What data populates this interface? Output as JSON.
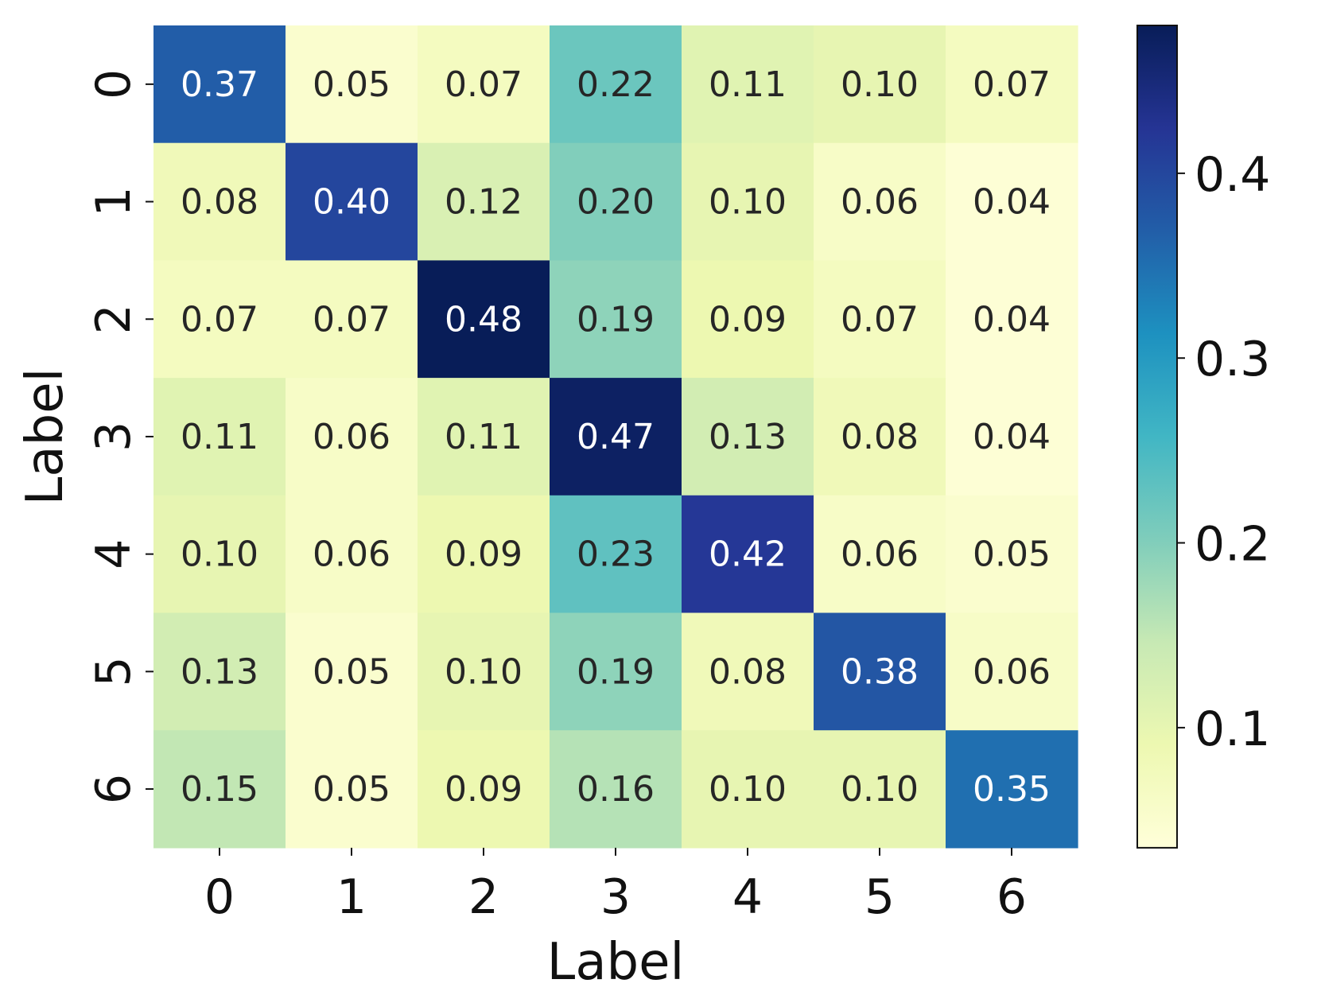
{
  "chart_data": {
    "type": "heatmap",
    "title": "",
    "xlabel": "Label",
    "ylabel": "Label",
    "x_categories": [
      "0",
      "1",
      "2",
      "3",
      "4",
      "5",
      "6"
    ],
    "y_categories": [
      "0",
      "1",
      "2",
      "3",
      "4",
      "5",
      "6"
    ],
    "values": [
      [
        0.37,
        0.05,
        0.07,
        0.22,
        0.11,
        0.1,
        0.07
      ],
      [
        0.08,
        0.4,
        0.12,
        0.2,
        0.1,
        0.06,
        0.04
      ],
      [
        0.07,
        0.07,
        0.48,
        0.19,
        0.09,
        0.07,
        0.04
      ],
      [
        0.11,
        0.06,
        0.11,
        0.47,
        0.13,
        0.08,
        0.04
      ],
      [
        0.1,
        0.06,
        0.09,
        0.23,
        0.42,
        0.06,
        0.05
      ],
      [
        0.13,
        0.05,
        0.1,
        0.19,
        0.08,
        0.38,
        0.06
      ],
      [
        0.15,
        0.05,
        0.09,
        0.16,
        0.1,
        0.1,
        0.35
      ]
    ],
    "value_format": "0.00",
    "annotated": true,
    "colormap": "YlGnBu",
    "colormap_stops": [
      "#ffffd9",
      "#edf8b1",
      "#c7e9b4",
      "#7fcdbb",
      "#41b6c4",
      "#1d91c0",
      "#225ea8",
      "#253494",
      "#081d58"
    ],
    "color_range": [
      0.035,
      0.48
    ],
    "colorbar": {
      "ticks": [
        0.1,
        0.2,
        0.3,
        0.4
      ],
      "tick_labels": [
        "0.1",
        "0.2",
        "0.3",
        "0.4"
      ],
      "placement": "right"
    },
    "text_color_dark": "#262626",
    "text_color_light": "#ffffff",
    "grid": false
  }
}
